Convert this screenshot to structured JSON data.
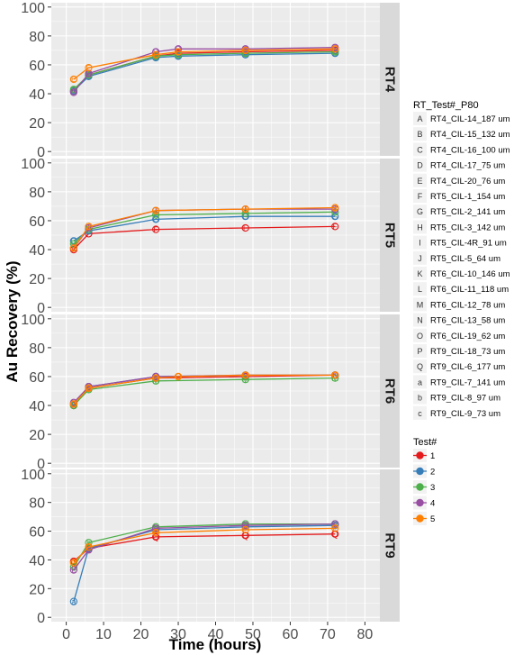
{
  "chart_data": {
    "type": "line",
    "xlabel": "Time (hours)",
    "ylabel": "Au Recovery (%)",
    "xlim": [
      -4,
      84
    ],
    "ylim": [
      -3,
      103
    ],
    "x_ticks": [
      0,
      10,
      20,
      30,
      40,
      50,
      60,
      70,
      80
    ],
    "y_ticks": [
      0,
      20,
      40,
      60,
      80,
      100
    ],
    "grid": true,
    "legend_position": "right",
    "legend_sample_title": "RT_Test#_P80",
    "legend_sample_entries": [
      {
        "key": "A",
        "label": "RT4_CIL-14_187 um"
      },
      {
        "key": "B",
        "label": "RT4_CIL-15_132 um"
      },
      {
        "key": "C",
        "label": "RT4_CIL-16_100 um"
      },
      {
        "key": "D",
        "label": "RT4_CIL-17_75 um"
      },
      {
        "key": "E",
        "label": "RT4_CIL-20_76 um"
      },
      {
        "key": "F",
        "label": "RT5_CIL-1_154 um"
      },
      {
        "key": "G",
        "label": "RT5_CIL-2_141 um"
      },
      {
        "key": "H",
        "label": "RT5_CIL-3_142 um"
      },
      {
        "key": "I",
        "label": "RT5_CIL-4R_91 um"
      },
      {
        "key": "J",
        "label": "RT5_CIL-5_64 um"
      },
      {
        "key": "K",
        "label": "RT6_CIL-10_146 um"
      },
      {
        "key": "L",
        "label": "RT6_CIL-11_118 um"
      },
      {
        "key": "M",
        "label": "RT6_CIL-12_78 um"
      },
      {
        "key": "N",
        "label": "RT6_CIL-13_58 um"
      },
      {
        "key": "O",
        "label": "RT6_CIL-19_62 um"
      },
      {
        "key": "P",
        "label": "RT9_CIL-18_73 um"
      },
      {
        "key": "Q",
        "label": "RT9_CIL-6_177 um"
      },
      {
        "key": "a",
        "label": "RT9_CIL-7_141 um"
      },
      {
        "key": "b",
        "label": "RT9_CIL-8_97 um"
      },
      {
        "key": "c",
        "label": "RT9_CIL-9_73 um"
      }
    ],
    "legend_test_title": "Test#",
    "legend_test_entries": [
      {
        "label": "1",
        "color": "#e41a1c"
      },
      {
        "label": "2",
        "color": "#377eb8"
      },
      {
        "label": "3",
        "color": "#4daf4a"
      },
      {
        "label": "4",
        "color": "#984ea3"
      },
      {
        "label": "5",
        "color": "#ff7f00"
      }
    ],
    "panels": [
      {
        "label": "RT4",
        "series": [
          {
            "letter": "A",
            "color": "#e41a1c",
            "x": [
              2,
              6,
              24,
              30,
              48,
              72
            ],
            "y": [
              42,
              53,
              66,
              68,
              69,
              70
            ]
          },
          {
            "letter": "B",
            "color": "#377eb8",
            "x": [
              2,
              6,
              24,
              30,
              48,
              72
            ],
            "y": [
              42,
              52,
              65,
              66,
              67,
              68
            ]
          },
          {
            "letter": "C",
            "color": "#4daf4a",
            "x": [
              2,
              6,
              24,
              30,
              48,
              72
            ],
            "y": [
              43,
              53,
              66,
              67,
              68,
              69
            ]
          },
          {
            "letter": "D",
            "color": "#984ea3",
            "x": [
              2,
              6,
              24,
              30,
              48,
              72
            ],
            "y": [
              41,
              54,
              69,
              71,
              71,
              72
            ]
          },
          {
            "letter": "E",
            "color": "#ff7f00",
            "x": [
              2,
              6,
              24,
              30,
              48,
              72
            ],
            "y": [
              50,
              58,
              67,
              69,
              70,
              71
            ]
          }
        ]
      },
      {
        "label": "RT5",
        "series": [
          {
            "letter": "F",
            "color": "#e41a1c",
            "x": [
              2,
              6,
              24,
              48,
              72
            ],
            "y": [
              40,
              51,
              54,
              55,
              56
            ]
          },
          {
            "letter": "G",
            "color": "#377eb8",
            "x": [
              2,
              6,
              24,
              48,
              72
            ],
            "y": [
              46,
              53,
              61,
              63,
              63
            ]
          },
          {
            "letter": "H",
            "color": "#4daf4a",
            "x": [
              2,
              6,
              24,
              48,
              72
            ],
            "y": [
              44,
              54,
              64,
              65,
              66
            ]
          },
          {
            "letter": "I",
            "color": "#984ea3",
            "x": [
              2,
              6,
              24,
              48,
              72
            ],
            "y": [
              41,
              55,
              67,
              68,
              68
            ]
          },
          {
            "letter": "J",
            "color": "#ff7f00",
            "x": [
              2,
              6,
              24,
              48,
              72
            ],
            "y": [
              41,
              56,
              67,
              68,
              69
            ]
          }
        ]
      },
      {
        "label": "RT6",
        "series": [
          {
            "letter": "K",
            "color": "#e41a1c",
            "x": [
              2,
              6,
              24,
              48,
              72
            ],
            "y": [
              40,
              52,
              59,
              60,
              61
            ]
          },
          {
            "letter": "L",
            "color": "#377eb8",
            "x": [
              2,
              6,
              24,
              48,
              72
            ],
            "y": [
              41,
              53,
              60,
              61,
              61
            ]
          },
          {
            "letter": "M",
            "color": "#4daf4a",
            "x": [
              2,
              6,
              24,
              48,
              72
            ],
            "y": [
              40,
              51,
              57,
              58,
              59
            ]
          },
          {
            "letter": "N",
            "color": "#984ea3",
            "x": [
              2,
              6,
              24,
              48,
              72
            ],
            "y": [
              42,
              53,
              60,
              61,
              61
            ]
          },
          {
            "letter": "O",
            "color": "#ff7f00",
            "x": [
              2,
              6,
              24,
              30,
              48,
              72
            ],
            "y": [
              41,
              52,
              59,
              60,
              61,
              61
            ]
          }
        ]
      },
      {
        "label": "RT9",
        "series": [
          {
            "letter": "Q",
            "color": "#e41a1c",
            "x": [
              2,
              6,
              24,
              48,
              72
            ],
            "y": [
              39,
              48,
              56,
              57,
              58
            ]
          },
          {
            "letter": "a",
            "color": "#377eb8",
            "x": [
              2,
              6,
              24,
              48,
              72
            ],
            "y": [
              11,
              48,
              61,
              63,
              64
            ]
          },
          {
            "letter": "b",
            "color": "#4daf4a",
            "x": [
              2,
              6,
              24,
              48,
              72
            ],
            "y": [
              35,
              52,
              63,
              65,
              65
            ]
          },
          {
            "letter": "c",
            "color": "#984ea3",
            "x": [
              2,
              6,
              24,
              48,
              72
            ],
            "y": [
              33,
              47,
              62,
              64,
              65
            ]
          },
          {
            "letter": "P",
            "color": "#ff7f00",
            "x": [
              2,
              6,
              24,
              48,
              72
            ],
            "y": [
              38,
              49,
              59,
              61,
              62
            ]
          }
        ]
      }
    ]
  }
}
